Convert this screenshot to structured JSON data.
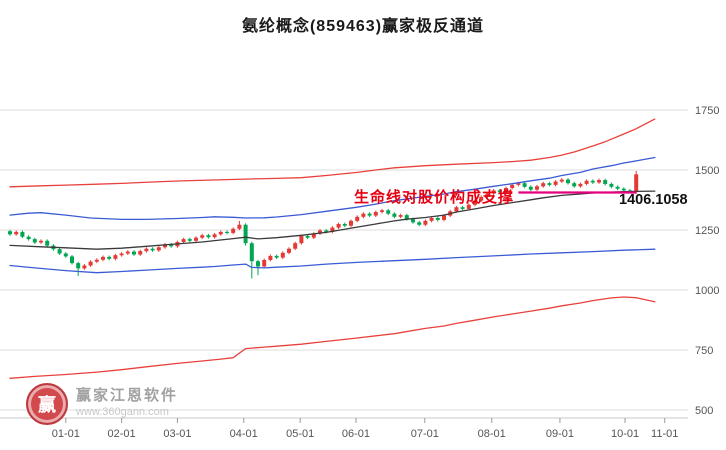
{
  "title": "氨纶概念(859463)赢家极反通道",
  "annotation": {
    "support_text": "生命线对股价构成支撑",
    "price_label": "1406.1058"
  },
  "watermark": {
    "brand": "赢家江恩软件",
    "url": "www.360gann.com",
    "logo_char": "赢"
  },
  "chart_data": {
    "type": "candlestick",
    "title": "氨纶概念(859463)赢家极反通道",
    "ylim": [
      500,
      1750
    ],
    "y_ticks": [
      1750,
      1500,
      1250,
      1000,
      750,
      500
    ],
    "x_ticks": [
      {
        "label": "01-01",
        "i": 9
      },
      {
        "label": "02-01",
        "i": 18
      },
      {
        "label": "03-01",
        "i": 27
      },
      {
        "label": "04-01",
        "i": 37.7
      },
      {
        "label": "05-01",
        "i": 46.8
      },
      {
        "label": "06-01",
        "i": 55.8
      },
      {
        "label": "07-01",
        "i": 66.9
      },
      {
        "label": "08-01",
        "i": 77.7
      },
      {
        "label": "09-01",
        "i": 88.7
      },
      {
        "label": "10-01",
        "i": 99.2
      },
      {
        "label": "11-01",
        "i": 105.6
      }
    ],
    "grid_on": true,
    "legend": "none",
    "up_color": "#e53935",
    "down_color": "#00a651",
    "grid_color": "#dcdcdc",
    "axis_color": "#c8c8c8",
    "label_color": "#555555",
    "candles": [
      [
        1245,
        1232,
        1226,
        1251
      ],
      [
        1232,
        1242,
        1226,
        1248
      ],
      [
        1242,
        1222,
        1216,
        1248
      ],
      [
        1222,
        1212,
        1206,
        1228
      ],
      [
        1212,
        1198,
        1192,
        1218
      ],
      [
        1198,
        1205,
        1192,
        1211
      ],
      [
        1205,
        1185,
        1179,
        1211
      ],
      [
        1185,
        1170,
        1164,
        1191
      ],
      [
        1170,
        1152,
        1146,
        1176
      ],
      [
        1152,
        1140,
        1134,
        1158
      ],
      [
        1140,
        1112,
        1106,
        1146
      ],
      [
        1112,
        1090,
        1058,
        1118
      ],
      [
        1090,
        1102,
        1084,
        1108
      ],
      [
        1102,
        1118,
        1096,
        1124
      ],
      [
        1118,
        1126,
        1112,
        1132
      ],
      [
        1126,
        1138,
        1120,
        1144
      ],
      [
        1138,
        1130,
        1124,
        1144
      ],
      [
        1130,
        1145,
        1124,
        1151
      ],
      [
        1145,
        1152,
        1139,
        1158
      ],
      [
        1152,
        1160,
        1146,
        1166
      ],
      [
        1160,
        1148,
        1142,
        1166
      ],
      [
        1148,
        1162,
        1142,
        1168
      ],
      [
        1162,
        1172,
        1156,
        1178
      ],
      [
        1172,
        1165,
        1159,
        1178
      ],
      [
        1165,
        1178,
        1159,
        1184
      ],
      [
        1178,
        1190,
        1172,
        1196
      ],
      [
        1190,
        1182,
        1176,
        1196
      ],
      [
        1182,
        1200,
        1176,
        1206
      ],
      [
        1200,
        1212,
        1194,
        1218
      ],
      [
        1212,
        1205,
        1199,
        1218
      ],
      [
        1205,
        1218,
        1199,
        1224
      ],
      [
        1218,
        1228,
        1212,
        1234
      ],
      [
        1228,
        1220,
        1214,
        1234
      ],
      [
        1220,
        1232,
        1214,
        1238
      ],
      [
        1232,
        1242,
        1226,
        1248
      ],
      [
        1242,
        1238,
        1232,
        1248
      ],
      [
        1238,
        1255,
        1232,
        1261
      ],
      [
        1255,
        1272,
        1249,
        1288
      ],
      [
        1272,
        1195,
        1185,
        1278
      ],
      [
        1195,
        1120,
        1048,
        1201
      ],
      [
        1120,
        1098,
        1062,
        1126
      ],
      [
        1098,
        1125,
        1092,
        1131
      ],
      [
        1125,
        1142,
        1119,
        1148
      ],
      [
        1142,
        1135,
        1129,
        1148
      ],
      [
        1135,
        1155,
        1129,
        1161
      ],
      [
        1155,
        1172,
        1149,
        1178
      ],
      [
        1172,
        1195,
        1166,
        1201
      ],
      [
        1195,
        1225,
        1189,
        1231
      ],
      [
        1225,
        1218,
        1212,
        1231
      ],
      [
        1218,
        1235,
        1212,
        1241
      ],
      [
        1235,
        1248,
        1229,
        1254
      ],
      [
        1248,
        1242,
        1236,
        1254
      ],
      [
        1242,
        1260,
        1236,
        1266
      ],
      [
        1260,
        1275,
        1254,
        1281
      ],
      [
        1275,
        1268,
        1262,
        1281
      ],
      [
        1268,
        1288,
        1262,
        1294
      ],
      [
        1288,
        1305,
        1282,
        1311
      ],
      [
        1305,
        1318,
        1299,
        1324
      ],
      [
        1318,
        1310,
        1304,
        1324
      ],
      [
        1310,
        1325,
        1304,
        1331
      ],
      [
        1325,
        1332,
        1319,
        1338
      ],
      [
        1332,
        1318,
        1312,
        1338
      ],
      [
        1318,
        1305,
        1299,
        1324
      ],
      [
        1305,
        1312,
        1299,
        1318
      ],
      [
        1312,
        1295,
        1289,
        1318
      ],
      [
        1295,
        1282,
        1276,
        1301
      ],
      [
        1282,
        1272,
        1266,
        1288
      ],
      [
        1272,
        1288,
        1266,
        1294
      ],
      [
        1288,
        1300,
        1282,
        1306
      ],
      [
        1300,
        1292,
        1286,
        1306
      ],
      [
        1292,
        1310,
        1286,
        1316
      ],
      [
        1310,
        1328,
        1304,
        1334
      ],
      [
        1328,
        1345,
        1322,
        1351
      ],
      [
        1345,
        1338,
        1332,
        1351
      ],
      [
        1338,
        1355,
        1332,
        1361
      ],
      [
        1355,
        1372,
        1349,
        1378
      ],
      [
        1372,
        1388,
        1366,
        1394
      ],
      [
        1388,
        1402,
        1382,
        1408
      ],
      [
        1402,
        1415,
        1396,
        1421
      ],
      [
        1415,
        1408,
        1402,
        1421
      ],
      [
        1408,
        1425,
        1402,
        1431
      ],
      [
        1425,
        1438,
        1419,
        1444
      ],
      [
        1438,
        1445,
        1432,
        1451
      ],
      [
        1445,
        1430,
        1424,
        1451
      ],
      [
        1430,
        1418,
        1412,
        1436
      ],
      [
        1418,
        1432,
        1412,
        1438
      ],
      [
        1432,
        1445,
        1426,
        1451
      ],
      [
        1445,
        1438,
        1432,
        1451
      ],
      [
        1438,
        1452,
        1432,
        1458
      ],
      [
        1452,
        1460,
        1446,
        1466
      ],
      [
        1460,
        1445,
        1439,
        1466
      ],
      [
        1445,
        1432,
        1426,
        1451
      ],
      [
        1432,
        1442,
        1426,
        1448
      ],
      [
        1442,
        1455,
        1436,
        1461
      ],
      [
        1455,
        1448,
        1442,
        1461
      ],
      [
        1448,
        1458,
        1442,
        1464
      ],
      [
        1458,
        1442,
        1436,
        1464
      ],
      [
        1442,
        1430,
        1424,
        1448
      ],
      [
        1430,
        1422,
        1416,
        1436
      ],
      [
        1422,
        1415,
        1409,
        1428
      ],
      [
        1415,
        1408,
        1402,
        1421
      ],
      [
        1408,
        1482,
        1400,
        1496
      ]
    ],
    "series": [
      {
        "name": "upper-channel-red",
        "color": "#e8413c",
        "width": 1.3,
        "anchors": [
          [
            0,
            1430
          ],
          [
            5,
            1434
          ],
          [
            9,
            1437
          ],
          [
            14,
            1441
          ],
          [
            18,
            1444
          ],
          [
            23,
            1450
          ],
          [
            27,
            1454
          ],
          [
            32,
            1458
          ],
          [
            38,
            1462
          ],
          [
            43,
            1465
          ],
          [
            47,
            1468
          ],
          [
            51,
            1477
          ],
          [
            56,
            1490
          ],
          [
            59,
            1500
          ],
          [
            62,
            1509
          ],
          [
            67,
            1518
          ],
          [
            72,
            1524
          ],
          [
            78,
            1531
          ],
          [
            81,
            1535
          ],
          [
            84,
            1541
          ],
          [
            87,
            1552
          ],
          [
            89,
            1562
          ],
          [
            91,
            1575
          ],
          [
            94,
            1600
          ],
          [
            96,
            1618
          ],
          [
            99,
            1650
          ],
          [
            101,
            1672
          ],
          [
            104,
            1712
          ]
        ]
      },
      {
        "name": "upper-channel-blue",
        "color": "#3b5bd6",
        "width": 1.3,
        "anchors": [
          [
            0,
            1312
          ],
          [
            3,
            1320
          ],
          [
            5,
            1322
          ],
          [
            9,
            1312
          ],
          [
            13,
            1300
          ],
          [
            18,
            1294
          ],
          [
            22,
            1294
          ],
          [
            27,
            1298
          ],
          [
            31,
            1302
          ],
          [
            33,
            1305
          ],
          [
            36,
            1303
          ],
          [
            38,
            1300
          ],
          [
            41,
            1301
          ],
          [
            43,
            1304
          ],
          [
            47,
            1314
          ],
          [
            51,
            1328
          ],
          [
            56,
            1345
          ],
          [
            59,
            1358
          ],
          [
            62,
            1372
          ],
          [
            67,
            1390
          ],
          [
            70,
            1400
          ],
          [
            72,
            1410
          ],
          [
            75,
            1420
          ],
          [
            78,
            1432
          ],
          [
            81,
            1443
          ],
          [
            84,
            1455
          ],
          [
            87,
            1466
          ],
          [
            89,
            1477
          ],
          [
            92,
            1490
          ],
          [
            94,
            1504
          ],
          [
            97,
            1518
          ],
          [
            99,
            1529
          ],
          [
            101,
            1538
          ],
          [
            104,
            1552
          ]
        ]
      },
      {
        "name": "lifeline-black",
        "color": "#3a3a3a",
        "width": 1.3,
        "anchors": [
          [
            0,
            1186
          ],
          [
            5,
            1180
          ],
          [
            9,
            1176
          ],
          [
            14,
            1170
          ],
          [
            18,
            1174
          ],
          [
            22,
            1182
          ],
          [
            27,
            1192
          ],
          [
            31,
            1200
          ],
          [
            33,
            1206
          ],
          [
            36,
            1214
          ],
          [
            38,
            1220
          ],
          [
            40,
            1213
          ],
          [
            43,
            1218
          ],
          [
            47,
            1228
          ],
          [
            51,
            1240
          ],
          [
            56,
            1262
          ],
          [
            59,
            1275
          ],
          [
            62,
            1288
          ],
          [
            64,
            1295
          ],
          [
            67,
            1302
          ],
          [
            70,
            1312
          ],
          [
            72,
            1325
          ],
          [
            75,
            1338
          ],
          [
            78,
            1352
          ],
          [
            81,
            1364
          ],
          [
            84,
            1376
          ],
          [
            86,
            1384
          ],
          [
            89,
            1394
          ],
          [
            92,
            1400
          ],
          [
            94,
            1404
          ],
          [
            97,
            1408
          ],
          [
            99,
            1410
          ],
          [
            101,
            1411
          ],
          [
            104,
            1412
          ]
        ]
      },
      {
        "name": "lower-channel-blue",
        "color": "#3b5bd6",
        "width": 1.3,
        "anchors": [
          [
            0,
            1102
          ],
          [
            4,
            1092
          ],
          [
            9,
            1081
          ],
          [
            14,
            1072
          ],
          [
            18,
            1077
          ],
          [
            22,
            1083
          ],
          [
            27,
            1090
          ],
          [
            31,
            1095
          ],
          [
            33,
            1098
          ],
          [
            36,
            1104
          ],
          [
            38,
            1108
          ],
          [
            39,
            1094
          ],
          [
            41,
            1092
          ],
          [
            43,
            1095
          ],
          [
            47,
            1100
          ],
          [
            51,
            1108
          ],
          [
            56,
            1115
          ],
          [
            62,
            1122
          ],
          [
            67,
            1128
          ],
          [
            72,
            1135
          ],
          [
            78,
            1142
          ],
          [
            84,
            1150
          ],
          [
            89,
            1155
          ],
          [
            94,
            1160
          ],
          [
            99,
            1166
          ],
          [
            104,
            1170
          ]
        ]
      },
      {
        "name": "lower-channel-red",
        "color": "#e8413c",
        "width": 1.3,
        "anchors": [
          [
            0,
            632
          ],
          [
            4,
            640
          ],
          [
            9,
            648
          ],
          [
            14,
            658
          ],
          [
            18,
            668
          ],
          [
            22,
            680
          ],
          [
            27,
            694
          ],
          [
            31,
            704
          ],
          [
            34,
            712
          ],
          [
            36,
            718
          ],
          [
            38,
            756
          ],
          [
            41,
            762
          ],
          [
            43,
            766
          ],
          [
            47,
            774
          ],
          [
            51,
            786
          ],
          [
            56,
            800
          ],
          [
            59,
            809
          ],
          [
            62,
            818
          ],
          [
            67,
            840
          ],
          [
            70,
            850
          ],
          [
            72,
            861
          ],
          [
            75,
            874
          ],
          [
            78,
            888
          ],
          [
            81,
            900
          ],
          [
            84,
            912
          ],
          [
            87,
            924
          ],
          [
            89,
            934
          ],
          [
            92,
            946
          ],
          [
            94,
            956
          ],
          [
            97,
            967
          ],
          [
            99,
            971
          ],
          [
            101,
            968
          ],
          [
            104,
            951
          ]
        ]
      }
    ],
    "support_line": {
      "value": 1406.1058,
      "from": 82,
      "to": 101,
      "color": "#e4007f",
      "width": 2.2
    }
  }
}
